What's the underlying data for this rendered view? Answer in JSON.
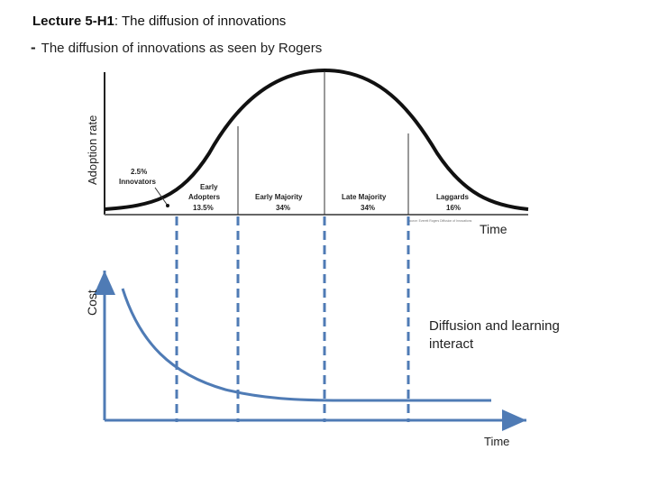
{
  "title": {
    "bold_part": "Lecture 5-H1",
    "rest": ": The diffusion of innovations"
  },
  "bullet": {
    "dash": "-",
    "text": "The diffusion of innovations as seen by Rogers"
  },
  "top_chart": {
    "y_axis_label": "Adoption rate",
    "x_axis_label": "Time",
    "source_note": "Source: Everett Rogers Diffusion of Innovations",
    "segments": [
      {
        "name": "Innovators",
        "percent": "2.5%"
      },
      {
        "name": "Early Adopters",
        "line1": "Early",
        "line2": "Adopters",
        "percent": "13.5%"
      },
      {
        "name": "Early Majority",
        "percent": "34%"
      },
      {
        "name": "Late Majority",
        "percent": "34%"
      },
      {
        "name": "Laggards",
        "percent": "16%"
      }
    ]
  },
  "bottom_chart": {
    "y_axis_label": "Cost",
    "x_axis_label": "Time"
  },
  "annotation": "Diffusion and learning interact",
  "colors": {
    "curve": "#111111",
    "lower_curve": "#4f7bb5",
    "dashed_lines": "#4f7bb5",
    "axis": "#4f7bb5"
  }
}
